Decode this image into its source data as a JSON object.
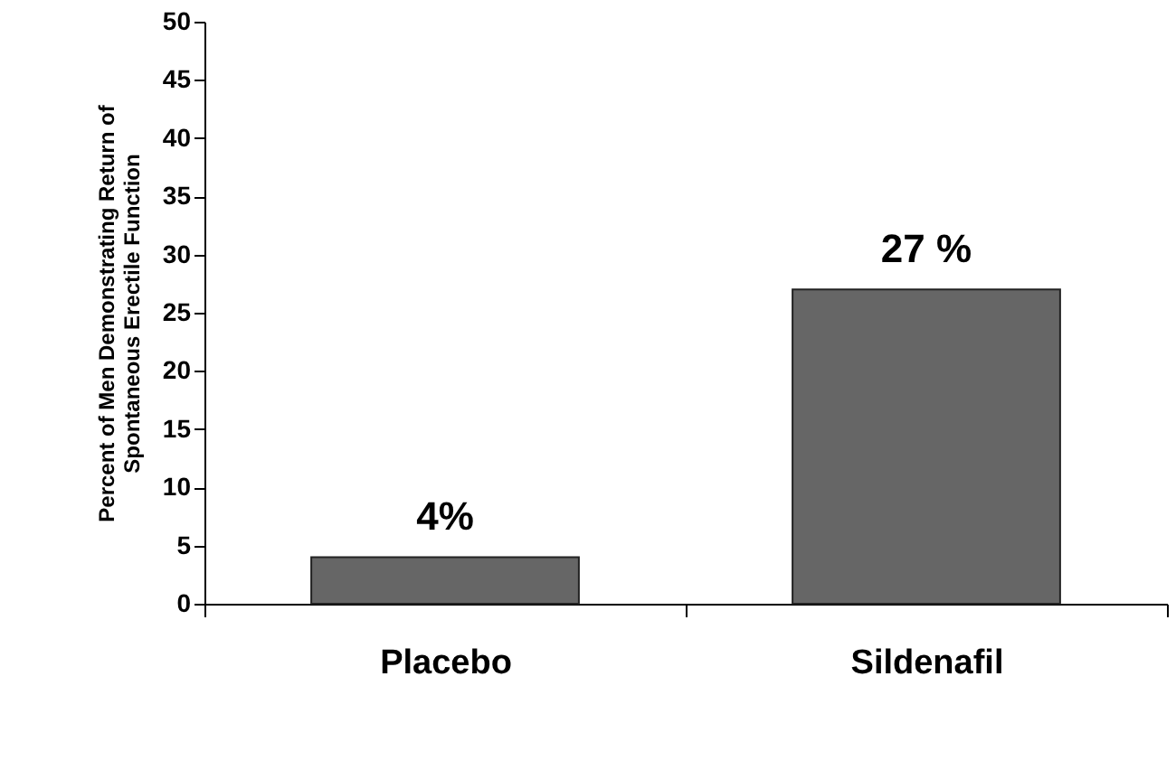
{
  "chart_data": {
    "type": "bar",
    "ylabel": "Percent of Men Demonstrating Return of\nSpontaneous Erectile Function",
    "categories": [
      "Placebo",
      "Sildenafil"
    ],
    "values": [
      4,
      27
    ],
    "value_labels": [
      "4%",
      "27 %"
    ],
    "color": "#666666",
    "ylim": [
      0,
      50
    ],
    "yticks": [
      0,
      5,
      10,
      15,
      20,
      25,
      30,
      35,
      40,
      45,
      50
    ],
    "grid": false
  }
}
